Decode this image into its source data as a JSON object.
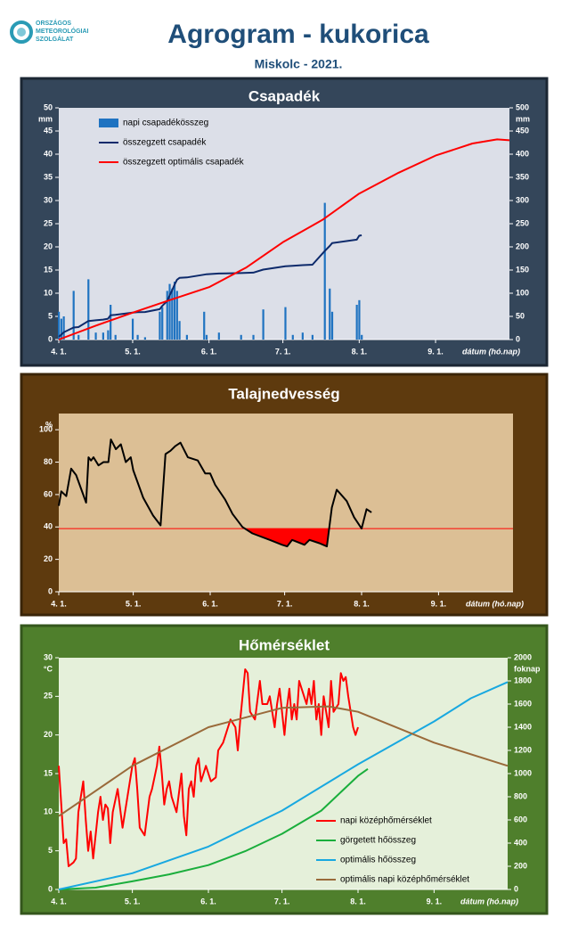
{
  "header": {
    "logo_text": [
      "ORSZÁGOS",
      "METEOROLÓGIAI",
      "SZOLGÁLAT"
    ],
    "title": "Agrogram - kukorica",
    "subtitle": "Miskolc - 2021."
  },
  "chart_data": [
    {
      "type": "combo",
      "title": "Csapadék",
      "xlabel": "dátum (hó.nap)",
      "ylabel": "mm",
      "y2label": "mm",
      "legend": "upper left",
      "xlim": [
        0,
        183
      ],
      "xticks": [
        {
          "value": 0,
          "label": "4. 1."
        },
        {
          "value": 30,
          "label": "5. 1."
        },
        {
          "value": 61,
          "label": "6. 1."
        },
        {
          "value": 91,
          "label": "7. 1."
        },
        {
          "value": 122,
          "label": "8. 1."
        },
        {
          "value": 153,
          "label": "9. 1."
        }
      ],
      "ylim": [
        0,
        50
      ],
      "yticks": [
        0,
        5,
        10,
        15,
        20,
        25,
        30,
        35,
        40,
        45,
        50
      ],
      "y2lim": [
        0,
        500
      ],
      "y2ticks": [
        0,
        50,
        100,
        150,
        200,
        250,
        300,
        350,
        400,
        450,
        500
      ],
      "series": [
        {
          "name": "napi csapadékösszeg",
          "type": "bar",
          "color": "#1f73c1",
          "x": [
            0,
            1,
            2,
            6,
            8,
            12,
            15,
            18,
            20,
            21,
            23,
            30,
            32,
            35,
            41,
            42,
            44,
            45,
            46,
            47,
            48,
            49,
            52,
            59,
            60,
            65,
            74,
            79,
            83,
            92,
            95,
            99,
            103,
            108,
            110,
            111,
            121,
            122,
            123
          ],
          "values": [
            6,
            4.5,
            5,
            10.5,
            1,
            13,
            1.5,
            1.5,
            2,
            7.5,
            1,
            4.5,
            1,
            0.5,
            6,
            7,
            10.5,
            12,
            11,
            12.5,
            10.5,
            4,
            1,
            6,
            1,
            1.5,
            1,
            1,
            6.5,
            7,
            1,
            1.5,
            1,
            29.5,
            11,
            6,
            7.5,
            8.5,
            1
          ]
        },
        {
          "name": "összegzett csapadék",
          "type": "line",
          "axis": "y2",
          "color": "#0d2a6b",
          "x": [
            0,
            1,
            2,
            6,
            8,
            12,
            15,
            18,
            20,
            21,
            23,
            30,
            32,
            35,
            41,
            42,
            44,
            45,
            46,
            47,
            48,
            49,
            52,
            59,
            60,
            65,
            74,
            79,
            83,
            92,
            95,
            99,
            103,
            108,
            110,
            111,
            121,
            122,
            123
          ],
          "values": [
            6,
            10.5,
            15.5,
            26,
            27,
            40,
            41.5,
            43,
            45,
            52.5,
            53.5,
            58,
            59,
            59.5,
            65.5,
            72.5,
            83,
            95,
            106,
            118.5,
            129,
            133,
            134,
            140,
            141,
            142.5,
            143.5,
            144.5,
            151,
            158,
            159,
            160.5,
            161.5,
            191,
            202,
            208,
            215.5,
            224,
            225
          ]
        },
        {
          "name": "összegzett optimális  csapadék",
          "type": "line",
          "axis": "y2",
          "color": "#ff0000",
          "x": [
            0,
            15,
            30,
            45,
            61,
            76,
            91,
            107,
            122,
            138,
            153,
            168,
            178,
            183
          ],
          "values": [
            0,
            30,
            58,
            85,
            113,
            155,
            210,
            258,
            315,
            360,
            397,
            423,
            432,
            430
          ]
        }
      ]
    },
    {
      "type": "line",
      "title": "Talajnedvesség",
      "xlabel": "dátum (hó.nap)",
      "ylabel": "%",
      "xlim": [
        0,
        183
      ],
      "xticks": [
        {
          "value": 0,
          "label": "4. 1."
        },
        {
          "value": 30,
          "label": "5. 1."
        },
        {
          "value": 61,
          "label": "6. 1."
        },
        {
          "value": 91,
          "label": "7. 1."
        },
        {
          "value": 122,
          "label": "8. 1."
        },
        {
          "value": 153,
          "label": "9. 1."
        }
      ],
      "ylim": [
        0,
        110
      ],
      "yticks": [
        0,
        20,
        40,
        60,
        80,
        100
      ],
      "threshold": 39,
      "threshold_color": "#ff0000",
      "series": [
        {
          "type": "line",
          "color": "#000000",
          "x": [
            0,
            1,
            3,
            5,
            7,
            11,
            12,
            13,
            14,
            16,
            18,
            20,
            21,
            23,
            25,
            27,
            29,
            30,
            34,
            38,
            41,
            43,
            45,
            47,
            49,
            52,
            56,
            59,
            61,
            63,
            67,
            70,
            74,
            78,
            85,
            90,
            92,
            94,
            99,
            101,
            105,
            108,
            110,
            112,
            116,
            119,
            122,
            124,
            126
          ],
          "values": [
            53,
            62,
            59,
            76,
            72,
            55,
            83,
            81,
            83,
            78,
            80,
            80,
            94,
            88,
            91,
            80,
            83,
            75,
            58,
            47,
            41,
            85,
            87,
            90,
            92,
            83,
            81,
            73,
            73,
            66,
            57,
            48,
            40,
            36,
            32,
            29,
            28,
            32,
            29,
            32,
            30,
            28,
            52,
            63,
            56,
            46,
            39,
            51,
            49
          ]
        }
      ]
    },
    {
      "type": "combo",
      "title": "Hőmérséklet",
      "xlabel": "dátum (hó.nap)",
      "ylabel": "°C",
      "y2label": "foknap",
      "legend": "lower right",
      "xlim": [
        0,
        183
      ],
      "xticks": [
        {
          "value": 0,
          "label": "4. 1."
        },
        {
          "value": 30,
          "label": "5. 1."
        },
        {
          "value": 61,
          "label": "6. 1."
        },
        {
          "value": 91,
          "label": "7. 1."
        },
        {
          "value": 122,
          "label": "8. 1."
        },
        {
          "value": 153,
          "label": "9. 1."
        }
      ],
      "ylim": [
        0,
        30
      ],
      "yticks": [
        0,
        5,
        10,
        15,
        20,
        25,
        30
      ],
      "y2lim": [
        0,
        2000
      ],
      "y2ticks": [
        0,
        200,
        400,
        600,
        800,
        1000,
        1200,
        1400,
        1600,
        1800,
        2000
      ],
      "series": [
        {
          "name": "napi középhőmérséklet",
          "type": "line",
          "color": "#ff0000",
          "x": [
            0,
            1,
            2,
            3,
            4,
            6,
            7,
            8,
            10,
            11,
            12,
            13,
            14,
            16,
            17,
            18,
            19,
            20,
            21,
            22,
            24,
            26,
            28,
            30,
            31,
            32,
            33,
            35,
            37,
            38,
            40,
            41,
            42,
            43,
            44,
            45,
            46,
            48,
            50,
            51,
            52,
            53,
            54,
            55,
            56,
            57,
            58,
            59,
            60,
            62,
            64,
            65,
            67,
            69,
            70,
            72,
            73,
            74,
            76,
            77,
            78,
            80,
            82,
            83,
            85,
            86,
            88,
            89,
            90,
            92,
            93,
            94,
            95,
            96,
            97,
            98,
            100,
            101,
            102,
            103,
            104,
            105,
            106,
            107,
            108,
            109,
            110,
            111,
            112,
            114,
            115,
            116,
            117,
            118,
            120,
            121,
            122
          ],
          "values": [
            16,
            11,
            6,
            6.5,
            3,
            3.5,
            4,
            10,
            14,
            9,
            5,
            7.5,
            4,
            10,
            12,
            9,
            11,
            10.5,
            6,
            10,
            13,
            8,
            12,
            16,
            17,
            13,
            8,
            7,
            12,
            13,
            16,
            18.5,
            15,
            11,
            13,
            14,
            12,
            10,
            15,
            9.5,
            7,
            13,
            14,
            12,
            16,
            17,
            14,
            15,
            16,
            14,
            14.5,
            18,
            19,
            21,
            22,
            21,
            18,
            22,
            28.5,
            28,
            23,
            22,
            27,
            24,
            24,
            25,
            21,
            24,
            26,
            20,
            23.5,
            26,
            22,
            24,
            22,
            27,
            25,
            24,
            26,
            24,
            27,
            22,
            24,
            20,
            25,
            23,
            21,
            27,
            23,
            24,
            28,
            27,
            27.5,
            25,
            21,
            20,
            21
          ]
        },
        {
          "name": "görgetett hőösszeg",
          "type": "line",
          "axis": "y2",
          "color": "#1aae3c",
          "x": [
            0,
            15,
            30,
            45,
            61,
            76,
            91,
            107,
            122,
            126
          ],
          "values": [
            0,
            15,
            70,
            130,
            210,
            330,
            480,
            680,
            980,
            1040
          ]
        },
        {
          "name": "optimális hőösszeg",
          "type": "line",
          "axis": "y2",
          "color": "#18a8e0",
          "x": [
            0,
            30,
            61,
            91,
            122,
            153,
            168,
            183
          ],
          "values": [
            0,
            140,
            370,
            680,
            1080,
            1450,
            1650,
            1790
          ]
        },
        {
          "name": "optimális napi középhőmérséklet",
          "type": "line",
          "color": "#9a6a3a",
          "x": [
            0,
            30,
            61,
            91,
            110,
            122,
            153,
            183
          ],
          "values": [
            9.5,
            16,
            21,
            23.5,
            23.7,
            23,
            19,
            16
          ]
        }
      ]
    }
  ]
}
